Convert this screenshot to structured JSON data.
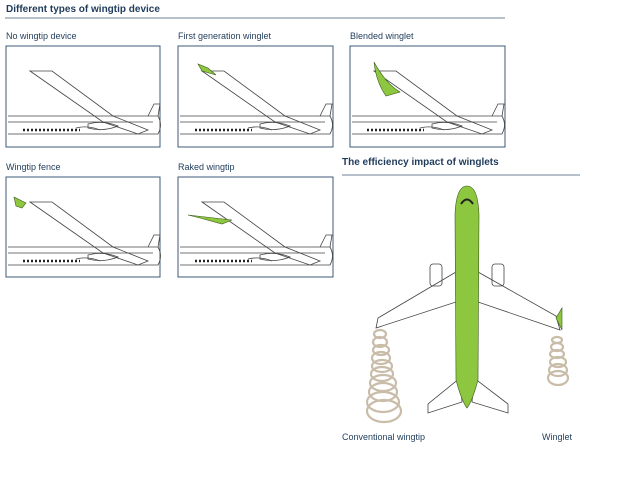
{
  "header": {
    "title": "Different types of wingtip device"
  },
  "panels": [
    {
      "label": "No wingtip device"
    },
    {
      "label": "First generation winglet"
    },
    {
      "label": "Blended winglet"
    },
    {
      "label": "Wingtip fence"
    },
    {
      "label": "Raked wingtip"
    }
  ],
  "efficiency": {
    "title": "The efficiency impact of winglets",
    "labels": [
      "Conventional wingtip",
      "Winglet"
    ]
  }
}
